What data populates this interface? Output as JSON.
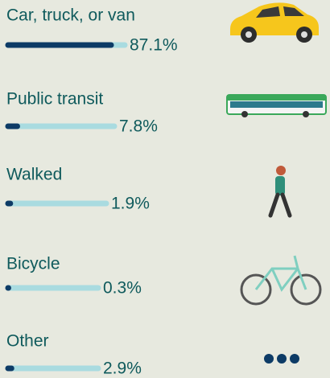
{
  "chart_data": {
    "type": "bar",
    "categories": [
      "Car, truck, or van",
      "Public transit",
      "Walked",
      "Bicycle",
      "Other"
    ],
    "values": [
      87.1,
      7.8,
      1.9,
      0.3,
      2.9
    ],
    "value_labels": [
      "87.1%",
      "7.8%",
      "1.9%",
      "0.3%",
      "2.9%"
    ],
    "color": "#0d3b66",
    "xlim": [
      0,
      100
    ]
  }
}
